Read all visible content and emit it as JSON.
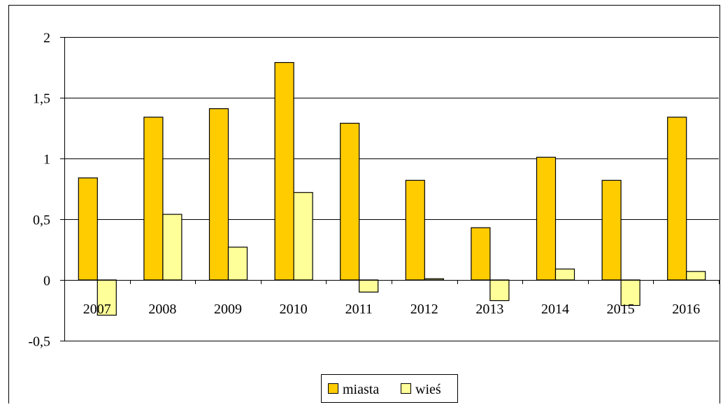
{
  "chart_data": {
    "type": "bar",
    "title": "",
    "xlabel": "",
    "ylabel": "",
    "categories": [
      "2007",
      "2008",
      "2009",
      "2010",
      "2011",
      "2012",
      "2013",
      "2014",
      "2015",
      "2016"
    ],
    "series": [
      {
        "name": "miasta",
        "color": "#FFCC00",
        "values": [
          0.84,
          1.34,
          1.41,
          1.79,
          1.29,
          0.82,
          0.43,
          1.01,
          0.82,
          1.34
        ]
      },
      {
        "name": "wieś",
        "color": "#FFFF99",
        "values": [
          -0.29,
          0.54,
          0.27,
          0.72,
          -0.1,
          0.01,
          -0.17,
          0.09,
          -0.21,
          0.07
        ]
      }
    ],
    "ylim": [
      -0.5,
      2
    ],
    "yticks": [
      "2",
      "1,5",
      "1",
      "0,5",
      "0",
      "-0,5"
    ],
    "ytick_values": [
      2,
      1.5,
      1,
      0.5,
      0,
      -0.5
    ],
    "grid": true,
    "legend_position": "bottom"
  }
}
